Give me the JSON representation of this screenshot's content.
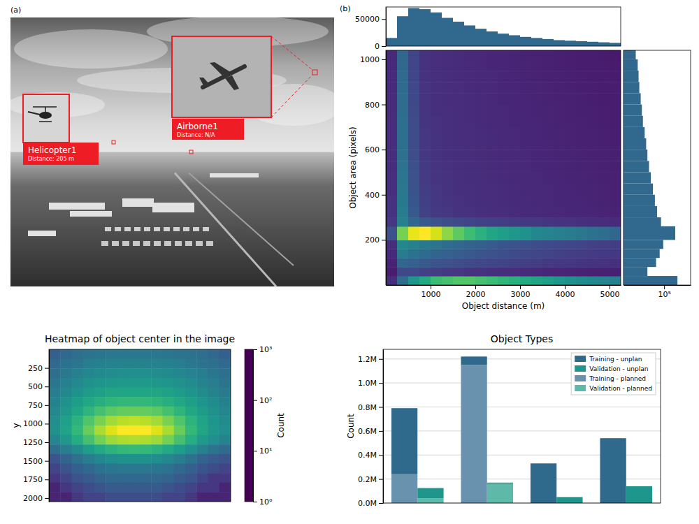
{
  "chart_data": [
    {
      "type": "image",
      "panel_label": "(a)",
      "annotations": [
        {
          "label": "Helicopter1",
          "sublabel": "Distance: 205 m"
        },
        {
          "label": "Airborne1",
          "sublabel": "Distance: N/A"
        }
      ]
    },
    {
      "type": "heatmap",
      "panel_label": "(b)",
      "x_label": "Object distance (m)",
      "y_label": "Object area (pixels)",
      "x_bins": [
        0,
        250,
        500,
        750,
        1000,
        1250,
        1500,
        1750,
        2000,
        2250,
        2500,
        2750,
        3000,
        3250,
        3500,
        3750,
        4000,
        4250,
        4500,
        4750,
        5000,
        5250
      ],
      "y_bins": [
        0,
        40,
        80,
        120,
        160,
        200,
        260,
        300,
        350,
        400,
        450,
        500,
        550,
        600,
        650,
        700,
        750,
        800,
        850,
        900,
        950,
        1000,
        1040
      ],
      "cells": [
        [
          500,
          4000,
          9000,
          12000,
          15000,
          16000,
          17000,
          17000,
          16000,
          15000,
          14000,
          13000,
          12000,
          11000,
          10000,
          9000,
          8000,
          7500,
          7000,
          6500,
          6000
        ],
        [
          200,
          1500,
          1500,
          1200,
          1000,
          900,
          800,
          700,
          650,
          600,
          550,
          500,
          450,
          400,
          380,
          350,
          320,
          300,
          280,
          260,
          240
        ],
        [
          300,
          3500,
          3000,
          2500,
          2200,
          2000,
          1800,
          1600,
          1500,
          1400,
          1300,
          1200,
          1100,
          1000,
          900,
          850,
          800,
          750,
          700,
          650,
          600
        ],
        [
          400,
          5500,
          4500,
          3800,
          3300,
          3000,
          2700,
          2400,
          2200,
          2000,
          1800,
          1600,
          1500,
          1400,
          1300,
          1200,
          1100,
          1000,
          950,
          900,
          850
        ],
        [
          500,
          7000,
          6000,
          5200,
          4600,
          4000,
          3600,
          3200,
          2900,
          2600,
          2300,
          2100,
          1900,
          1700,
          1600,
          1500,
          1400,
          1300,
          1200,
          1100,
          1000
        ],
        [
          2000,
          20000,
          30000,
          32000,
          28000,
          22000,
          18000,
          15000,
          13000,
          11000,
          10000,
          9000,
          8000,
          7000,
          6500,
          6000,
          5500,
          5000,
          4500,
          4000,
          3500
        ],
        [
          800,
          6000,
          3500,
          2500,
          2000,
          1700,
          1500,
          1300,
          1200,
          1100,
          1000,
          900,
          850,
          800,
          750,
          700,
          650,
          600,
          550,
          500,
          450
        ],
        [
          700,
          5500,
          2500,
          1200,
          900,
          800,
          700,
          650,
          600,
          550,
          500,
          480,
          460,
          440,
          420,
          400,
          380,
          360,
          340,
          320,
          300
        ],
        [
          650,
          5200,
          2300,
          1100,
          850,
          750,
          650,
          600,
          560,
          520,
          480,
          460,
          440,
          420,
          400,
          380,
          360,
          340,
          320,
          300,
          280
        ],
        [
          600,
          5000,
          2100,
          1000,
          800,
          700,
          620,
          580,
          540,
          500,
          470,
          450,
          430,
          410,
          390,
          370,
          350,
          330,
          310,
          290,
          270
        ],
        [
          600,
          4800,
          2000,
          950,
          760,
          660,
          600,
          560,
          520,
          480,
          450,
          430,
          410,
          390,
          370,
          350,
          330,
          310,
          300,
          280,
          260
        ],
        [
          550,
          4600,
          1900,
          900,
          720,
          640,
          580,
          540,
          500,
          470,
          440,
          420,
          400,
          380,
          360,
          340,
          320,
          300,
          290,
          270,
          250
        ],
        [
          550,
          4400,
          1800,
          860,
          700,
          620,
          560,
          520,
          490,
          460,
          430,
          410,
          390,
          370,
          350,
          330,
          310,
          290,
          280,
          260,
          240
        ],
        [
          520,
          4300,
          1750,
          830,
          680,
          600,
          550,
          510,
          480,
          450,
          420,
          400,
          380,
          360,
          340,
          320,
          300,
          280,
          270,
          250,
          230
        ],
        [
          500,
          4200,
          1700,
          800,
          660,
          590,
          540,
          500,
          470,
          440,
          410,
          390,
          370,
          350,
          330,
          310,
          290,
          270,
          260,
          240,
          220
        ],
        [
          500,
          4100,
          1650,
          780,
          640,
          580,
          530,
          490,
          460,
          430,
          400,
          380,
          360,
          340,
          320,
          300,
          280,
          260,
          250,
          230,
          210
        ],
        [
          480,
          4000,
          1600,
          760,
          620,
          570,
          520,
          480,
          450,
          420,
          390,
          370,
          350,
          330,
          310,
          290,
          270,
          250,
          240,
          220,
          200
        ],
        [
          470,
          3900,
          1550,
          740,
          610,
          560,
          510,
          470,
          440,
          410,
          380,
          360,
          340,
          320,
          300,
          280,
          260,
          240,
          230,
          210,
          190
        ],
        [
          460,
          3800,
          1500,
          720,
          600,
          550,
          500,
          460,
          430,
          400,
          370,
          350,
          330,
          310,
          290,
          270,
          250,
          230,
          220,
          200,
          180
        ],
        [
          450,
          3700,
          1450,
          700,
          590,
          540,
          490,
          450,
          420,
          390,
          360,
          340,
          320,
          300,
          280,
          260,
          240,
          220,
          210,
          190,
          170
        ],
        [
          440,
          3600,
          1400,
          690,
          580,
          530,
          480,
          440,
          410,
          380,
          350,
          330,
          310,
          290,
          270,
          250,
          230,
          210,
          200,
          180,
          160
        ],
        [
          430,
          3500,
          1350,
          680,
          570,
          520,
          470,
          430,
          400,
          370,
          340,
          320,
          300,
          280,
          260,
          240,
          220,
          200,
          190,
          170,
          150
        ]
      ],
      "xlim": [
        0,
        5250
      ],
      "ylim": [
        0,
        1040
      ],
      "xticks": [
        1000,
        2000,
        3000,
        4000,
        5000
      ],
      "yticks": [
        200,
        400,
        600,
        800,
        1000
      ]
    },
    {
      "type": "histogram",
      "bins": [
        0,
        250,
        500,
        750,
        1000,
        1250,
        1500,
        1750,
        2000,
        2250,
        2500,
        2750,
        3000,
        3250,
        3500,
        3750,
        4000,
        4250,
        4500,
        4750,
        5000,
        5250
      ],
      "values": [
        15000,
        55000,
        70000,
        68000,
        62000,
        52000,
        45000,
        38000,
        32000,
        27000,
        23000,
        20000,
        17000,
        15000,
        13000,
        11000,
        10000,
        9000,
        8000,
        7000,
        6000
      ],
      "color": "#31688e",
      "xlim": [
        0,
        5250
      ],
      "ylim": [
        0,
        72000
      ],
      "yticks": [
        0,
        50000
      ],
      "tick_labels": "y"
    },
    {
      "type": "histogram",
      "orientation": "horizontal",
      "log": "x",
      "bins": [
        0,
        40,
        80,
        120,
        160,
        200,
        260,
        300,
        350,
        400,
        450,
        500,
        550,
        600,
        650,
        700,
        750,
        800,
        850,
        900,
        950,
        1000,
        1040
      ],
      "values": [
        450000,
        15000,
        40000,
        60000,
        90000,
        350000,
        70000,
        45000,
        35000,
        28000,
        22000,
        18000,
        15000,
        13000,
        11000,
        9000,
        8000,
        7000,
        6000,
        5500,
        5000,
        4000
      ],
      "color": "#31688e",
      "xlim": [
        1000,
        2000000
      ],
      "ylim": [
        0,
        1040
      ],
      "xticks": [
        {
          "value": 100000,
          "label": "10⁵"
        }
      ],
      "tick_labels": "x"
    },
    {
      "type": "heatmap",
      "title": "Heatmap of object center in the image",
      "y_label": "y",
      "x_bins": [
        0,
        153,
        306,
        459,
        612,
        765,
        918,
        1071,
        1224,
        1377,
        1530,
        1683,
        1836,
        1989,
        2142,
        2295,
        2448
      ],
      "y_bins": [
        0,
        128,
        256,
        384,
        512,
        640,
        768,
        896,
        1024,
        1152,
        1280,
        1408,
        1536,
        1664,
        1792,
        1920,
        2048
      ],
      "cells": [
        [
          8,
          10,
          12,
          14,
          15,
          16,
          16,
          16,
          16,
          16,
          15,
          14,
          13,
          12,
          10,
          8
        ],
        [
          10,
          13,
          15,
          18,
          20,
          21,
          22,
          22,
          22,
          21,
          20,
          18,
          16,
          14,
          12,
          10
        ],
        [
          12,
          16,
          20,
          24,
          27,
          29,
          30,
          30,
          30,
          29,
          27,
          24,
          21,
          18,
          15,
          12
        ],
        [
          15,
          20,
          26,
          32,
          37,
          40,
          42,
          42,
          42,
          40,
          37,
          32,
          27,
          22,
          18,
          14
        ],
        [
          18,
          25,
          34,
          44,
          52,
          58,
          60,
          60,
          60,
          58,
          52,
          44,
          36,
          28,
          22,
          17
        ],
        [
          22,
          32,
          45,
          62,
          78,
          90,
          95,
          96,
          95,
          90,
          78,
          62,
          48,
          36,
          27,
          20
        ],
        [
          26,
          40,
          60,
          90,
          130,
          170,
          190,
          195,
          190,
          170,
          130,
          90,
          62,
          44,
          32,
          24
        ],
        [
          30,
          50,
          85,
          150,
          250,
          380,
          480,
          520,
          480,
          380,
          250,
          150,
          88,
          55,
          38,
          28
        ],
        [
          32,
          55,
          100,
          200,
          400,
          700,
          950,
          1000,
          950,
          700,
          400,
          200,
          100,
          58,
          40,
          30
        ],
        [
          24,
          40,
          70,
          130,
          230,
          350,
          430,
          450,
          430,
          350,
          230,
          130,
          72,
          42,
          30,
          22
        ],
        [
          12,
          18,
          28,
          45,
          65,
          85,
          100,
          105,
          100,
          85,
          65,
          45,
          30,
          20,
          14,
          11
        ],
        [
          6,
          9,
          13,
          18,
          24,
          30,
          33,
          34,
          33,
          30,
          24,
          18,
          13,
          9,
          7,
          6
        ],
        [
          4,
          6,
          8,
          10,
          13,
          15,
          16,
          16,
          16,
          15,
          13,
          10,
          8,
          6,
          5,
          4
        ],
        [
          3,
          4,
          6,
          7,
          9,
          10,
          10,
          10,
          10,
          10,
          9,
          7,
          6,
          4,
          3,
          3
        ],
        [
          2,
          3,
          4,
          5,
          6,
          7,
          7,
          7,
          7,
          7,
          6,
          5,
          4,
          3,
          3,
          2
        ],
        [
          2,
          2,
          3,
          4,
          4,
          5,
          5,
          5,
          5,
          5,
          4,
          4,
          3,
          2,
          2,
          2
        ]
      ],
      "xlim": [
        0,
        2448
      ],
      "ylim": [
        2048,
        0
      ],
      "yticks": [
        250,
        500,
        750,
        1000,
        1250,
        1500,
        1750,
        2000
      ],
      "tick_labels": "y",
      "colorbar": {
        "label": "Count",
        "range": [
          1,
          1000
        ],
        "log": true,
        "ticks": [
          {
            "value": 1,
            "label": "10⁰"
          },
          {
            "value": 10,
            "label": "10¹"
          },
          {
            "value": 100,
            "label": "10²"
          },
          {
            "value": 1000,
            "label": "10³"
          }
        ]
      }
    },
    {
      "type": "bar",
      "title": "Object Types",
      "y_label": "Count",
      "categories": [
        null,
        null,
        null,
        null,
        null,
        null,
        null,
        null
      ],
      "series": [
        {
          "name": "Training - unplan",
          "color": "#2f6a8d",
          "values": [
            550000,
            null,
            70000,
            null,
            330000,
            null,
            540000,
            null
          ]
        },
        {
          "name": "Validation - unplan",
          "color": "#1f968b",
          "values": [
            null,
            85000,
            null,
            8000,
            null,
            50000,
            null,
            140000
          ]
        },
        {
          "name": "Training - planned",
          "color": "#6892ad",
          "values": [
            240000,
            null,
            1150000,
            null,
            0,
            null,
            0,
            null
          ]
        },
        {
          "name": "Validation - planned",
          "color": "#5fb9a9",
          "values": [
            null,
            40000,
            null,
            162000,
            null,
            0,
            null,
            0
          ]
        }
      ],
      "stacked": true,
      "grid": true,
      "legend": "upper right",
      "ylim": [
        0,
        1280000
      ],
      "yticks": [
        {
          "value": 0,
          "label": "0.0M"
        },
        {
          "value": 200000,
          "label": "0.2M"
        },
        {
          "value": 400000,
          "label": "0.4M"
        },
        {
          "value": 600000,
          "label": "0.6M"
        },
        {
          "value": 800000,
          "label": "0.8M"
        },
        {
          "value": 1000000,
          "label": "1.0M"
        },
        {
          "value": 1200000,
          "label": "1.2M"
        }
      ],
      "tick_labels": "y"
    }
  ]
}
